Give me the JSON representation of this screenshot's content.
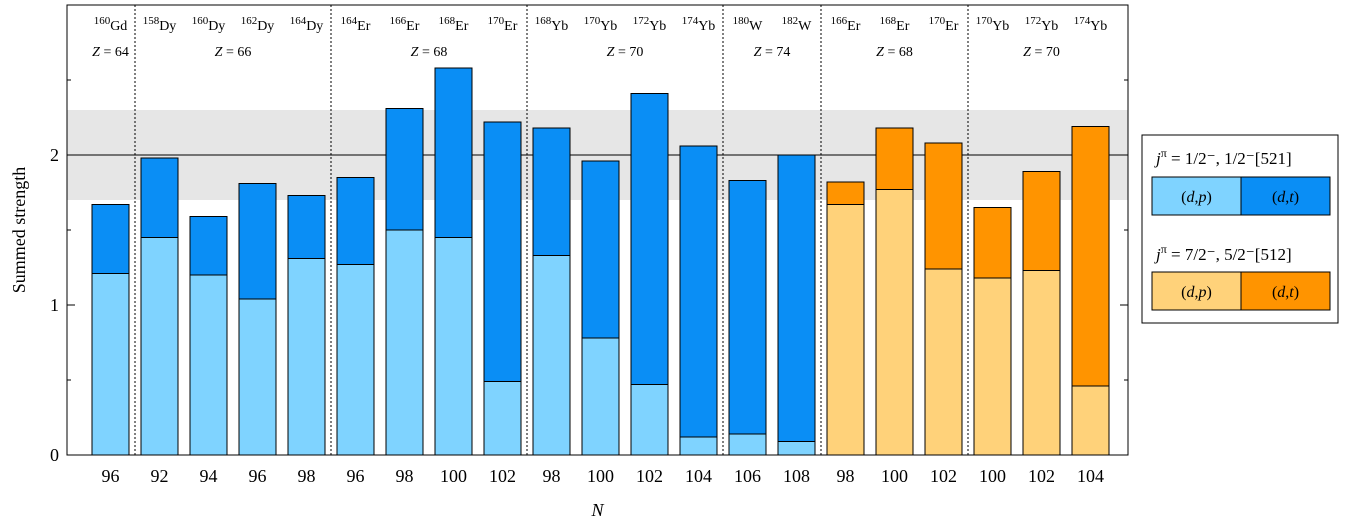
{
  "chart_data": {
    "type": "bar",
    "stacked": true,
    "ylabel": "Summed strength",
    "xlabel": "N",
    "ylim": [
      0,
      3.0
    ],
    "yticks": [
      "0",
      "1",
      "2"
    ],
    "reference_line": 2.0,
    "reference_band": [
      1.7,
      2.3
    ],
    "grid": false,
    "legend_position": "right",
    "categories": [
      "96",
      "92",
      "94",
      "96",
      "98",
      "96",
      "98",
      "100",
      "102",
      "98",
      "100",
      "102",
      "104",
      "106",
      "108",
      "98",
      "100",
      "102",
      "100",
      "102",
      "104"
    ],
    "groups": [
      {
        "isotopes": [
          {
            "a": "160",
            "el": "Gd"
          }
        ],
        "z": "64",
        "bars": 1
      },
      {
        "isotopes": [
          {
            "a": "158",
            "el": "Dy"
          },
          {
            "a": "160",
            "el": "Dy"
          },
          {
            "a": "162",
            "el": "Dy"
          },
          {
            "a": "164",
            "el": "Dy"
          }
        ],
        "z": "66",
        "bars": 4
      },
      {
        "isotopes": [
          {
            "a": "164",
            "el": "Er"
          },
          {
            "a": "166",
            "el": "Er"
          },
          {
            "a": "168",
            "el": "Er"
          },
          {
            "a": "170",
            "el": "Er"
          }
        ],
        "z": "68",
        "bars": 4
      },
      {
        "isotopes": [
          {
            "a": "168",
            "el": "Yb"
          },
          {
            "a": "170",
            "el": "Yb"
          },
          {
            "a": "172",
            "el": "Yb"
          },
          {
            "a": "174",
            "el": "Yb"
          }
        ],
        "z": "70",
        "bars": 4
      },
      {
        "isotopes": [
          {
            "a": "180",
            "el": "W"
          },
          {
            "a": "182",
            "el": "W"
          }
        ],
        "z": "74",
        "bars": 2
      },
      {
        "isotopes": [
          {
            "a": "166",
            "el": "Er"
          },
          {
            "a": "168",
            "el": "Er"
          },
          {
            "a": "170",
            "el": "Er"
          }
        ],
        "z": "68",
        "bars": 3
      },
      {
        "isotopes": [
          {
            "a": "170",
            "el": "Yb"
          },
          {
            "a": "172",
            "el": "Yb"
          },
          {
            "a": "174",
            "el": "Yb"
          }
        ],
        "z": "70",
        "bars": 3
      }
    ],
    "z_prefix": "Z",
    "series": [
      {
        "name": "(d,p)",
        "values": [
          1.21,
          1.45,
          1.2,
          1.04,
          1.31,
          1.27,
          1.5,
          1.45,
          0.49,
          1.33,
          0.78,
          0.47,
          0.12,
          0.14,
          0.09,
          1.67,
          1.77,
          1.24,
          1.18,
          1.23,
          0.46
        ]
      },
      {
        "name": "(d,t)",
        "values": [
          0.46,
          0.53,
          0.39,
          0.77,
          0.42,
          0.58,
          0.81,
          1.13,
          1.73,
          0.85,
          1.18,
          1.94,
          1.94,
          1.69,
          1.91,
          0.15,
          0.41,
          0.84,
          0.47,
          0.66,
          1.73
        ]
      }
    ],
    "bar_state": [
      "blue",
      "blue",
      "blue",
      "blue",
      "blue",
      "blue",
      "blue",
      "blue",
      "blue",
      "blue",
      "blue",
      "blue",
      "blue",
      "blue",
      "blue",
      "orange",
      "orange",
      "orange",
      "orange",
      "orange",
      "orange"
    ],
    "colors": {
      "blue_light": "#7fd3ff",
      "blue_dark": "#0a8ef5",
      "orange_light": "#ffd27a",
      "orange_dark": "#ff9400",
      "band": "#e6e6e6"
    },
    "legend": [
      {
        "j": "j",
        "sup": "π",
        "rest": " = 1/2⁻, 1/2⁻[521]",
        "left": "(d,p)",
        "right": "(d,t)",
        "scheme": "blue"
      },
      {
        "j": "j",
        "sup": "π",
        "rest": " = 7/2⁻, 5/2⁻[512]",
        "left": "(d,p)",
        "right": "(d,t)",
        "scheme": "orange"
      }
    ]
  }
}
